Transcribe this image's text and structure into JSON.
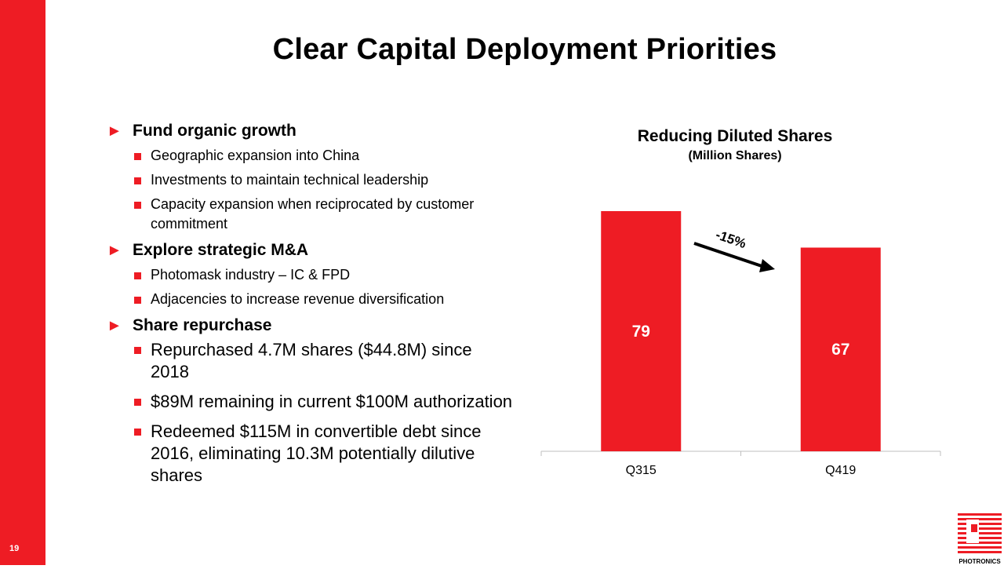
{
  "page_number": "19",
  "title": "Clear Capital Deployment Priorities",
  "bullets": [
    {
      "text": "Fund organic growth",
      "sub": [
        {
          "text": "Geographic expansion into China"
        },
        {
          "text": "Investments to maintain technical leadership"
        },
        {
          "text": "Capacity expansion when reciprocated by customer commitment"
        }
      ]
    },
    {
      "text": "Explore strategic M&A",
      "sub": [
        {
          "text": "Photomask industry – IC & FPD"
        },
        {
          "text": "Adjacencies to increase revenue diversification"
        }
      ]
    },
    {
      "text": "Share repurchase",
      "large": true,
      "sub": [
        {
          "text": "Repurchased 4.7M shares ($44.8M) since 2018"
        },
        {
          "text": "$89M remaining in current $100M authorization"
        },
        {
          "text": "Redeemed $115M in convertible debt since 2016, eliminating 10.3M potentially dilutive shares"
        }
      ]
    }
  ],
  "chart_data": {
    "type": "bar",
    "title": "Reducing Diluted Shares",
    "subtitle": "(Million Shares)",
    "categories": [
      "Q315",
      "Q419"
    ],
    "values": [
      79,
      67
    ],
    "annotation": "-15%",
    "ylim": [
      0,
      80
    ],
    "grid": false,
    "bar_color": "#ee1c24"
  },
  "logo": {
    "text": "PHOTRONICS",
    "color": "#ee1c24"
  }
}
